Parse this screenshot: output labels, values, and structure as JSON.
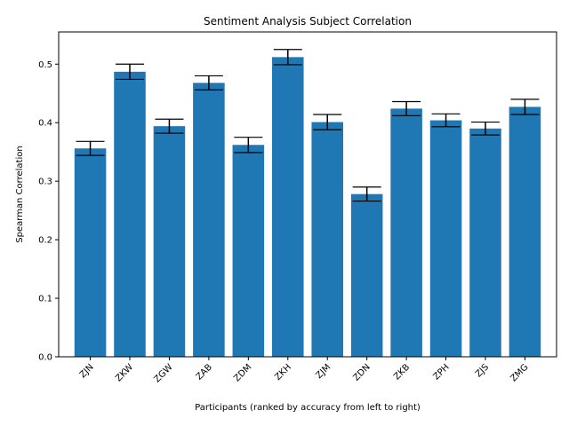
{
  "chart_data": {
    "type": "bar",
    "title": "Sentiment Analysis Subject Correlation",
    "xlabel": "Participants (ranked by accuracy from left to right)",
    "ylabel": "Spearman Correlation",
    "ylim": [
      0,
      0.555
    ],
    "yticks": [
      0.0,
      0.1,
      0.2,
      0.3,
      0.4,
      0.5
    ],
    "ytick_labels": [
      "0.0",
      "0.1",
      "0.2",
      "0.3",
      "0.4",
      "0.5"
    ],
    "grid": false,
    "bar_color": "#1f77b4",
    "error_color": "#000000",
    "categories": [
      "ZJN",
      "ZKW",
      "ZGW",
      "ZAB",
      "ZDM",
      "ZKH",
      "ZJM",
      "ZDN",
      "ZKB",
      "ZPH",
      "ZJS",
      "ZMG"
    ],
    "values": [
      0.356,
      0.487,
      0.394,
      0.468,
      0.362,
      0.512,
      0.401,
      0.278,
      0.424,
      0.404,
      0.39,
      0.427
    ],
    "errors": [
      0.012,
      0.013,
      0.012,
      0.012,
      0.013,
      0.013,
      0.013,
      0.012,
      0.012,
      0.011,
      0.011,
      0.013
    ]
  }
}
